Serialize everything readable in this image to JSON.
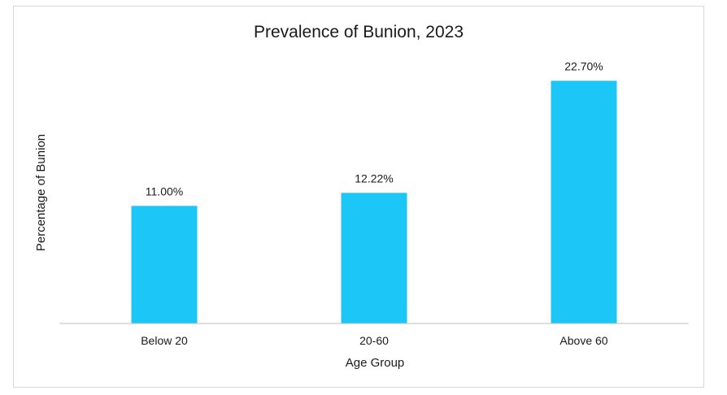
{
  "chart_data": {
    "type": "bar",
    "title": "Prevalence of Bunion, 2023",
    "xlabel": "Age Group",
    "ylabel": "Percentage of Bunion",
    "categories": [
      "Below 20",
      "20-60",
      "Above 60"
    ],
    "values": [
      11.0,
      12.22,
      22.7
    ],
    "data_labels": [
      "11.00%",
      "12.22%",
      "22.70%"
    ],
    "ylim": [
      0,
      26
    ],
    "grid": false,
    "legend": "none",
    "bar_color": "#1CC7F7",
    "axis_color": "#bfbfbf"
  }
}
